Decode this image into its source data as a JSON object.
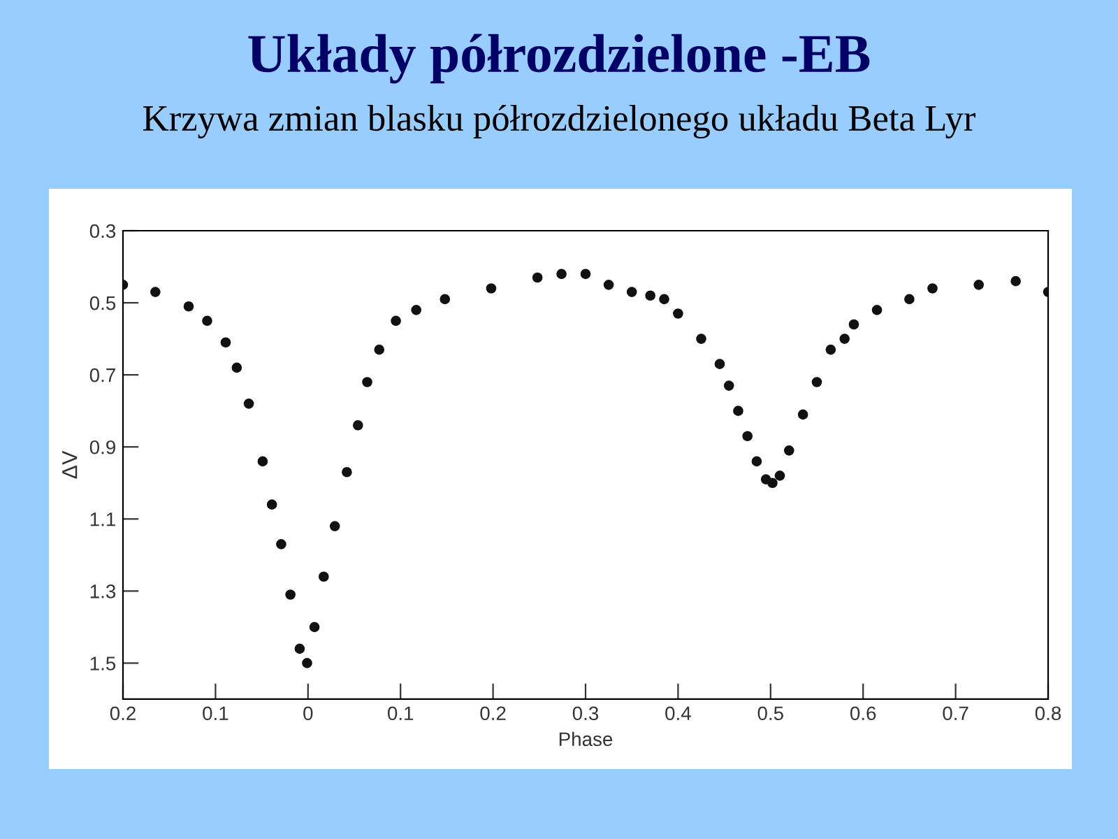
{
  "chart_data": {
    "type": "scatter",
    "title": "Układy półrozdzielone -EB",
    "subtitle": "Krzywa zmian blasku półrozdzielonego układu Beta Lyr",
    "xlabel": "Phase",
    "ylabel": "ΔV",
    "xlim": [
      -0.2,
      0.8
    ],
    "ylim": [
      1.6,
      0.3
    ],
    "xticks": [
      {
        "value": -0.2,
        "label": "0.2"
      },
      {
        "value": -0.1,
        "label": "0.1"
      },
      0,
      0.1,
      0.2,
      0.3,
      0.4,
      0.5,
      0.6,
      0.7,
      0.8
    ],
    "yticks": [
      0.3,
      0.5,
      0.7,
      0.9,
      1.1,
      1.3,
      1.5
    ],
    "grid": false,
    "marker": "circle",
    "series": [
      {
        "color": "#111111",
        "x": [
          -0.2,
          -0.165,
          -0.129,
          -0.109,
          -0.089,
          -0.077,
          -0.064,
          -0.049,
          -0.039,
          -0.029,
          -0.019,
          -0.009,
          -0.001,
          0.007,
          0.017,
          0.029,
          0.042,
          0.054,
          0.064,
          0.077,
          0.095,
          0.117,
          0.148,
          0.198,
          0.248,
          0.274,
          0.3,
          0.325,
          0.35,
          0.37,
          0.385,
          0.4,
          0.425,
          0.445,
          0.455,
          0.465,
          0.475,
          0.485,
          0.495,
          0.502,
          0.51,
          0.52,
          0.535,
          0.55,
          0.565,
          0.58,
          0.59,
          0.615,
          0.65,
          0.675,
          0.725,
          0.765,
          0.8
        ],
        "values": [
          0.45,
          0.47,
          0.51,
          0.55,
          0.61,
          0.68,
          0.78,
          0.94,
          1.06,
          1.17,
          1.31,
          1.46,
          1.5,
          1.4,
          1.26,
          1.12,
          0.97,
          0.84,
          0.72,
          0.63,
          0.55,
          0.52,
          0.49,
          0.46,
          0.43,
          0.42,
          0.42,
          0.45,
          0.47,
          0.48,
          0.49,
          0.53,
          0.6,
          0.67,
          0.73,
          0.8,
          0.87,
          0.94,
          0.99,
          1.0,
          0.98,
          0.91,
          0.81,
          0.72,
          0.63,
          0.6,
          0.56,
          0.52,
          0.49,
          0.46,
          0.45,
          0.44,
          0.47
        ]
      }
    ]
  }
}
